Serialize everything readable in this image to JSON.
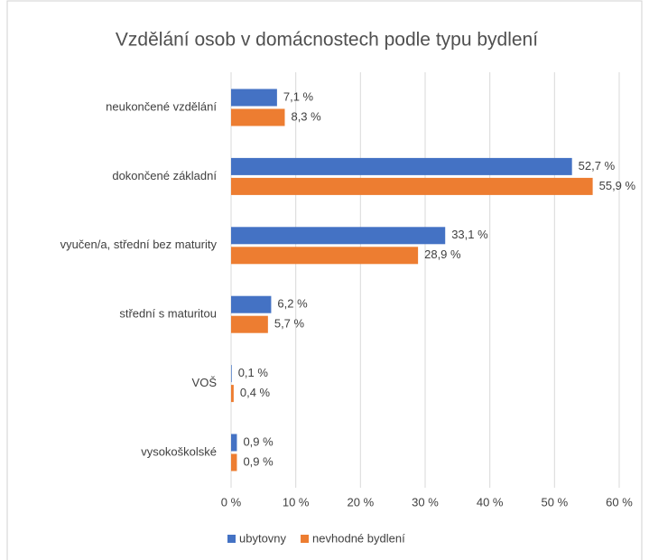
{
  "chart_data": {
    "type": "barh",
    "title": "Vzdělání osob v domácnostech podle typu bydlení",
    "categories": [
      "neukončené vzdělání",
      "dokončené základní",
      "vyučen/a, střední bez maturity",
      "střední s maturitou",
      "VOŠ",
      "vysokoškolské"
    ],
    "series": [
      {
        "name": "ubytovny",
        "color": "#4472c4",
        "values": [
          7.1,
          52.7,
          33.1,
          6.2,
          0.1,
          0.9
        ],
        "value_labels": [
          "7,1 %",
          "52,7 %",
          "33,1 %",
          "6,2 %",
          "0,1 %",
          "0,9 %"
        ]
      },
      {
        "name": "nevhodné bydlení",
        "color": "#ed7d31",
        "values": [
          8.3,
          55.9,
          28.9,
          5.7,
          0.4,
          0.9
        ],
        "value_labels": [
          "8,3 %",
          "55,9 %",
          "28,9 %",
          "5,7 %",
          "0,4 %",
          "0,9 %"
        ]
      }
    ],
    "xlim": [
      0,
      60
    ],
    "xticks": [
      {
        "value": 0,
        "label": "0 %"
      },
      {
        "value": 10,
        "label": "10 %"
      },
      {
        "value": 20,
        "label": "20 %"
      },
      {
        "value": 30,
        "label": "30 %"
      },
      {
        "value": 40,
        "label": "40 %"
      },
      {
        "value": 50,
        "label": "50 %"
      },
      {
        "value": 60,
        "label": "60 %"
      }
    ],
    "grid": true,
    "legend": "bottom"
  }
}
